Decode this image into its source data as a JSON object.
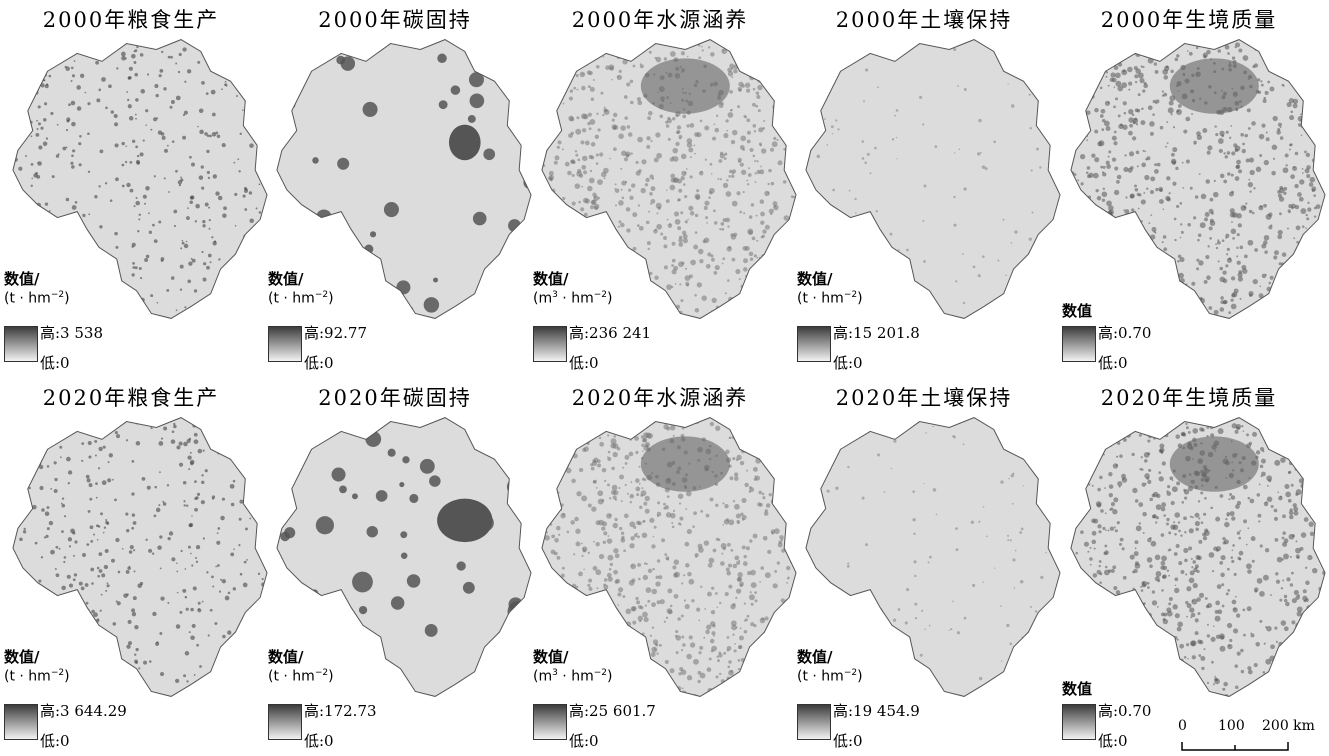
{
  "colors": {
    "ramp_high": "#3c3c3c",
    "ramp_low": "#f2f2f2",
    "map_fill": "#dcdcdc",
    "map_outline": "#555555"
  },
  "panels": [
    {
      "title": "2000年粮食生产",
      "legend_title": "数值/",
      "unit": "(t · hm",
      "unit_exp": "−2",
      "unit_close": ")",
      "high": "高:3 538",
      "low": "低:0",
      "style": "grain"
    },
    {
      "title": "2000年碳固持",
      "legend_title": "数值/",
      "unit": "(t · hm",
      "unit_exp": "−2",
      "unit_close": ")",
      "high": "高:92.77",
      "low": "低:0",
      "style": "carbon"
    },
    {
      "title": "2000年水源涵养",
      "legend_title": "数值/",
      "unit": "(m",
      "unit_exp": "3",
      "unit_mid": " · hm",
      "unit_exp2": "−2",
      "unit_close": ")",
      "high": "高:236 241",
      "low": "低:0",
      "style": "water"
    },
    {
      "title": "2000年土壤保持",
      "legend_title": "数值/",
      "unit": "(t · hm",
      "unit_exp": "−2",
      "unit_close": ")",
      "high": "高:15 201.8",
      "low": "低:0",
      "style": "soil"
    },
    {
      "title": "2000年生境质量",
      "legend_title": "数值",
      "high": "高:0.70",
      "low": "低:0",
      "style": "habitat"
    },
    {
      "title": "2020年粮食生产",
      "legend_title": "数值/",
      "unit": "(t · hm",
      "unit_exp": "−2",
      "unit_close": ")",
      "high": "高:3 644.29",
      "low": "低:0",
      "style": "grain"
    },
    {
      "title": "2020年碳固持",
      "legend_title": "数值/",
      "unit": "(t · hm",
      "unit_exp": "−2",
      "unit_close": ")",
      "high": "高:172.73",
      "low": "低:0",
      "style": "carbon"
    },
    {
      "title": "2020年水源涵养",
      "legend_title": "数值/",
      "unit": "(m",
      "unit_exp": "3",
      "unit_mid": " · hm",
      "unit_exp2": "−2",
      "unit_close": ")",
      "high": "高:25 601.7",
      "low": "低:0",
      "style": "water"
    },
    {
      "title": "2020年土壤保持",
      "legend_title": "数值/",
      "unit": "(t · hm",
      "unit_exp": "−2",
      "unit_close": ")",
      "high": "高:19 454.9",
      "low": "低:0",
      "style": "soil"
    },
    {
      "title": "2020年生境质量",
      "legend_title": "数值",
      "high": "高:0.70",
      "low": "低:0",
      "style": "habitat"
    }
  ],
  "scale_bar": {
    "ticks": [
      "0",
      "100",
      "200 km"
    ]
  }
}
